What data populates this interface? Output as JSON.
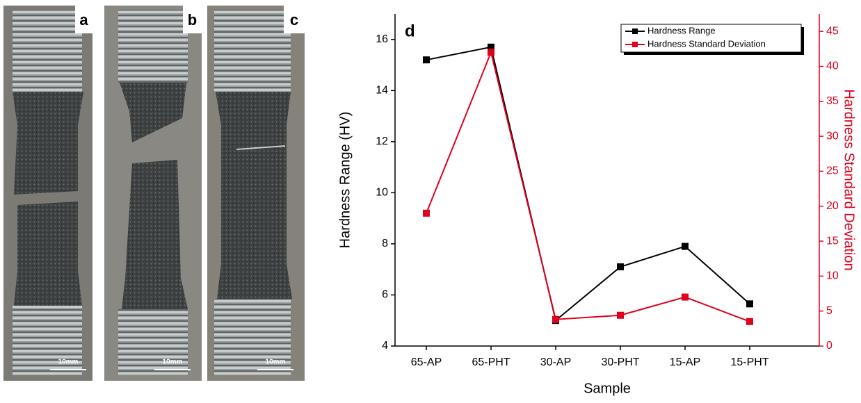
{
  "panels": [
    {
      "label": "a",
      "scale_bar": "10mm"
    },
    {
      "label": "b",
      "scale_bar": "10mm"
    },
    {
      "label": "c",
      "scale_bar": "10mm"
    }
  ],
  "chart_data": {
    "type": "line",
    "label": "d",
    "x_label": "Sample",
    "y_label": "Hardness Range (HV)",
    "y2_label": "Hardness Standard Deviation",
    "categories": [
      "65-AP",
      "65-PHT",
      "30-AP",
      "30-PHT",
      "15-AP",
      "15-PHT"
    ],
    "series": [
      {
        "name": "Hardness Range",
        "color": "#000000",
        "values": [
          15.2,
          15.7,
          5.0,
          7.1,
          7.9,
          5.65
        ]
      },
      {
        "name": "Hardness Standard Deviation",
        "color": "#e0001b",
        "axis": "y2",
        "values": [
          19,
          42,
          3.8,
          4.4,
          7,
          3.5
        ]
      }
    ],
    "ylim": [
      4,
      17
    ],
    "yticks": [
      4,
      6,
      8,
      10,
      12,
      14,
      16
    ],
    "y2lim": [
      0,
      47.5
    ],
    "y2ticks": [
      0,
      5,
      10,
      15,
      20,
      25,
      30,
      35,
      40,
      45
    ],
    "legend": "upper right"
  }
}
